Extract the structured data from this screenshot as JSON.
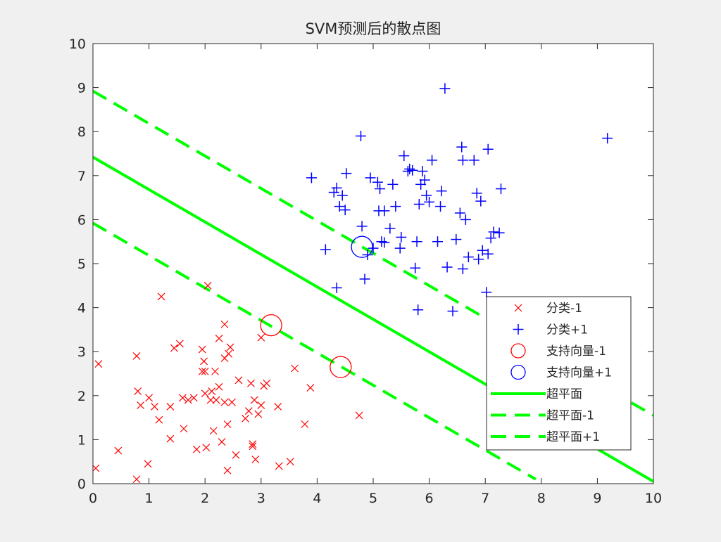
{
  "chart_data": {
    "type": "scatter",
    "title": "SVM预测后的散点图",
    "xlabel": "",
    "ylabel": "",
    "xlim": [
      0,
      10
    ],
    "ylim": [
      0,
      10
    ],
    "xticks": [
      "0",
      "1",
      "2",
      "3",
      "4",
      "5",
      "6",
      "7",
      "8",
      "9",
      "10"
    ],
    "yticks": [
      "0",
      "1",
      "2",
      "3",
      "4",
      "5",
      "6",
      "7",
      "8",
      "9",
      "10"
    ],
    "grid": false,
    "legend_position": "lower-right",
    "series": [
      {
        "name": "分类-1",
        "marker": "x",
        "color": "#ff0000",
        "points": [
          [
            0.05,
            0.35
          ],
          [
            0.1,
            2.72
          ],
          [
            0.45,
            0.75
          ],
          [
            0.78,
            0.1
          ],
          [
            0.78,
            2.9
          ],
          [
            0.8,
            2.1
          ],
          [
            0.85,
            1.78
          ],
          [
            0.98,
            0.45
          ],
          [
            1.0,
            1.95
          ],
          [
            1.1,
            1.75
          ],
          [
            1.18,
            1.45
          ],
          [
            1.22,
            4.25
          ],
          [
            1.38,
            1.02
          ],
          [
            1.38,
            1.75
          ],
          [
            1.45,
            3.08
          ],
          [
            1.55,
            3.18
          ],
          [
            1.6,
            1.95
          ],
          [
            1.62,
            1.25
          ],
          [
            1.7,
            1.9
          ],
          [
            1.8,
            1.95
          ],
          [
            1.85,
            0.78
          ],
          [
            1.95,
            2.55
          ],
          [
            1.95,
            3.05
          ],
          [
            1.98,
            2.78
          ],
          [
            2.0,
            2.05
          ],
          [
            2.0,
            2.55
          ],
          [
            2.02,
            0.82
          ],
          [
            2.05,
            4.5
          ],
          [
            2.1,
            1.9
          ],
          [
            2.12,
            2.1
          ],
          [
            2.15,
            1.2
          ],
          [
            2.18,
            2.55
          ],
          [
            2.2,
            1.9
          ],
          [
            2.25,
            2.2
          ],
          [
            2.25,
            3.3
          ],
          [
            2.3,
            0.95
          ],
          [
            2.35,
            1.85
          ],
          [
            2.35,
            3.62
          ],
          [
            2.35,
            2.85
          ],
          [
            2.4,
            1.35
          ],
          [
            2.4,
            0.3
          ],
          [
            2.42,
            2.95
          ],
          [
            2.45,
            3.1
          ],
          [
            2.48,
            1.85
          ],
          [
            2.55,
            0.65
          ],
          [
            2.6,
            2.35
          ],
          [
            2.72,
            1.48
          ],
          [
            2.78,
            1.65
          ],
          [
            2.82,
            2.28
          ],
          [
            2.85,
            0.9
          ],
          [
            2.85,
            0.85
          ],
          [
            2.88,
            1.9
          ],
          [
            2.9,
            0.55
          ],
          [
            2.95,
            1.58
          ],
          [
            3.0,
            1.78
          ],
          [
            3.0,
            3.32
          ],
          [
            3.05,
            2.22
          ],
          [
            3.1,
            2.28
          ],
          [
            3.3,
            1.75
          ],
          [
            3.32,
            0.4
          ],
          [
            3.52,
            0.5
          ],
          [
            3.6,
            2.62
          ],
          [
            3.78,
            1.35
          ],
          [
            3.88,
            2.18
          ],
          [
            4.75,
            1.55
          ]
        ]
      },
      {
        "name": "分类+1",
        "marker": "+",
        "color": "#0000ff",
        "points": [
          [
            3.9,
            6.95
          ],
          [
            4.15,
            5.32
          ],
          [
            4.3,
            6.62
          ],
          [
            4.35,
            6.72
          ],
          [
            4.35,
            4.45
          ],
          [
            4.4,
            6.3
          ],
          [
            4.45,
            6.55
          ],
          [
            4.5,
            6.22
          ],
          [
            4.52,
            7.05
          ],
          [
            4.78,
            7.9
          ],
          [
            4.8,
            5.85
          ],
          [
            4.85,
            4.65
          ],
          [
            4.9,
            5.2
          ],
          [
            4.95,
            6.95
          ],
          [
            5.0,
            5.35
          ],
          [
            5.08,
            6.85
          ],
          [
            5.1,
            6.2
          ],
          [
            5.12,
            6.7
          ],
          [
            5.15,
            5.5
          ],
          [
            5.2,
            6.2
          ],
          [
            5.2,
            5.48
          ],
          [
            5.3,
            5.8
          ],
          [
            5.35,
            6.8
          ],
          [
            5.4,
            6.3
          ],
          [
            5.48,
            5.35
          ],
          [
            5.5,
            5.6
          ],
          [
            5.55,
            7.45
          ],
          [
            5.62,
            7.1
          ],
          [
            5.65,
            7.15
          ],
          [
            5.7,
            7.12
          ],
          [
            5.75,
            4.9
          ],
          [
            5.78,
            5.5
          ],
          [
            5.8,
            3.95
          ],
          [
            5.82,
            6.35
          ],
          [
            5.85,
            6.8
          ],
          [
            5.88,
            7.1
          ],
          [
            5.92,
            6.9
          ],
          [
            5.95,
            6.55
          ],
          [
            6.0,
            6.4
          ],
          [
            6.05,
            7.35
          ],
          [
            6.15,
            5.5
          ],
          [
            6.2,
            6.3
          ],
          [
            6.22,
            6.65
          ],
          [
            6.28,
            8.98
          ],
          [
            6.32,
            4.92
          ],
          [
            6.42,
            3.92
          ],
          [
            6.48,
            5.55
          ],
          [
            6.55,
            6.15
          ],
          [
            6.58,
            7.65
          ],
          [
            6.6,
            7.35
          ],
          [
            6.6,
            4.88
          ],
          [
            6.65,
            6.0
          ],
          [
            6.7,
            5.15
          ],
          [
            6.8,
            7.35
          ],
          [
            6.85,
            6.6
          ],
          [
            6.88,
            5.1
          ],
          [
            6.92,
            6.42
          ],
          [
            6.95,
            5.3
          ],
          [
            7.02,
            4.35
          ],
          [
            7.05,
            7.6
          ],
          [
            7.05,
            5.22
          ],
          [
            7.1,
            5.58
          ],
          [
            7.15,
            5.72
          ],
          [
            7.25,
            5.7
          ],
          [
            7.28,
            6.7
          ],
          [
            9.18,
            7.85
          ]
        ]
      },
      {
        "name": "支持向量-1",
        "marker": "o",
        "color": "#ff0000",
        "points": [
          [
            3.18,
            3.6
          ],
          [
            4.42,
            2.65
          ]
        ]
      },
      {
        "name": "支持向量+1",
        "marker": "o",
        "color": "#0000ff",
        "points": [
          [
            4.8,
            5.38
          ]
        ]
      },
      {
        "name": "超平面",
        "style": "solid",
        "color": "#00ff00",
        "points": [
          [
            0,
            7.42
          ],
          [
            10,
            0.05
          ]
        ]
      },
      {
        "name": "超平面-1",
        "style": "dashed",
        "color": "#00ff00",
        "points": [
          [
            0,
            5.92
          ],
          [
            7.9,
            0.1
          ]
        ]
      },
      {
        "name": "超平面+1",
        "style": "dashed",
        "color": "#00ff00",
        "points": [
          [
            0,
            8.92
          ],
          [
            10,
            1.55
          ]
        ]
      }
    ]
  }
}
